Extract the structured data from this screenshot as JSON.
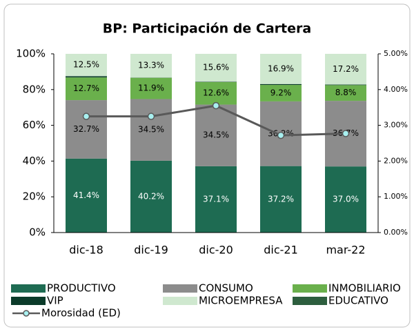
{
  "chart_data": {
    "type": "bar",
    "stacked": true,
    "title": "BP: Participación  de Cartera",
    "categories": [
      "dic-18",
      "dic-19",
      "dic-20",
      "dic-21",
      "mar-22"
    ],
    "ylim": [
      0,
      100
    ],
    "yticks": [
      {
        "value": 0,
        "label": "0%"
      },
      {
        "value": 20,
        "label": "20%"
      },
      {
        "value": 40,
        "label": "40%"
      },
      {
        "value": 60,
        "label": "60%"
      },
      {
        "value": 80,
        "label": "80%"
      },
      {
        "value": 100,
        "label": "100%"
      }
    ],
    "y2lim": [
      0,
      5
    ],
    "y2ticks": [
      {
        "value": 0,
        "label": "0.00%"
      },
      {
        "value": 1,
        "label": "1.00%"
      },
      {
        "value": 2,
        "label": "2.00%"
      },
      {
        "value": 3,
        "label": "3.00%"
      },
      {
        "value": 4,
        "label": "4.00%"
      },
      {
        "value": 5,
        "label": "5.00%"
      }
    ],
    "series": [
      {
        "name": "PRODUCTIVO",
        "color": "#1e6b52",
        "label_color": "#ffffff",
        "values": [
          41.4,
          40.2,
          37.1,
          37.2,
          37.0
        ],
        "value_labels": [
          "41.4%",
          "40.2%",
          "37.1%",
          "37.2%",
          "37.0%"
        ]
      },
      {
        "name": "CONSUMO",
        "color": "#8c8c8c",
        "label_color": "#000000",
        "values": [
          32.7,
          34.5,
          34.5,
          36.2,
          36.7
        ],
        "value_labels": [
          "32.7%",
          "34.5%",
          "34.5%",
          "36.2%",
          "36.7%"
        ]
      },
      {
        "name": "INMOBILIARIO",
        "color": "#6ab04c",
        "label_color": "#000000",
        "values": [
          12.7,
          11.9,
          12.6,
          9.2,
          8.8
        ],
        "value_labels": [
          "12.7%",
          "11.9%",
          "12.6%",
          "9.2%",
          "8.8%"
        ]
      },
      {
        "name": "VIP",
        "color": "#0b3b2a",
        "values": [
          0.7,
          0.1,
          0.2,
          0.5,
          0.3
        ]
      },
      {
        "name": "MICROEMPRESA",
        "color": "#cfe8cf",
        "label_color": "#000000",
        "values": [
          12.5,
          13.3,
          15.6,
          16.9,
          17.2
        ],
        "value_labels": [
          "12.5%",
          "13.3%",
          "15.6%",
          "16.9%",
          "17.2%"
        ]
      },
      {
        "name": "EDUCATIVO",
        "color": "#2d5e3e",
        "values": [
          0,
          0,
          0,
          0,
          0
        ]
      },
      {
        "name": "Morosidad (ED)",
        "type": "line",
        "axis": "y2",
        "color": "#595959",
        "marker_color": "#a8f0f0",
        "values": [
          3.25,
          3.25,
          3.55,
          2.72,
          2.77
        ]
      }
    ]
  }
}
